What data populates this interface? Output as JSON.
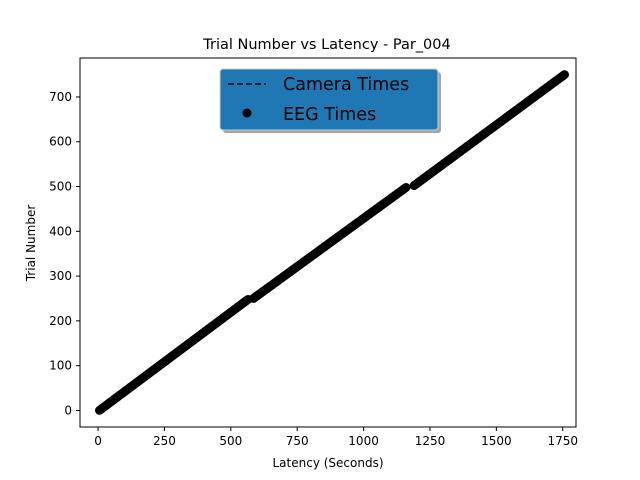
{
  "chart_data": {
    "type": "scatter",
    "title": "Trial Number vs Latency -  Par_004",
    "xlabel": "Latency (Seconds)",
    "ylabel": "Trial Number",
    "xlim": [
      -68,
      1800
    ],
    "ylim": [
      -37,
      787
    ],
    "x_ticks": [
      0,
      250,
      500,
      750,
      1000,
      1250,
      1500,
      1750
    ],
    "y_ticks": [
      0,
      100,
      200,
      300,
      400,
      500,
      600,
      700
    ],
    "x_tick_labels": [
      "0",
      "250",
      "500",
      "750",
      "1000",
      "1250",
      "1500",
      "1750"
    ],
    "y_tick_labels": [
      "0",
      "100",
      "200",
      "300",
      "400",
      "500",
      "600",
      "700"
    ],
    "grid": false,
    "legend_position": "top-center",
    "legend": {
      "background": "#1f77b4",
      "entries": [
        {
          "label": "Camera Times",
          "marker": "dashed-line",
          "color": "#000000"
        },
        {
          "label": "EEG Times",
          "marker": "circle",
          "color": "#000000"
        }
      ]
    },
    "series": [
      {
        "name": "Camera Times",
        "style": "dashed-line",
        "color": "#000000",
        "x": [
          5,
          1757
        ],
        "y": [
          0,
          750
        ]
      },
      {
        "name": "EEG Times",
        "style": "points",
        "color": "#000000",
        "segments": [
          {
            "x_start": 5,
            "x_end": 565,
            "y_start": 0,
            "y_end": 248
          },
          {
            "x_start": 585,
            "x_end": 1160,
            "y_start": 250,
            "y_end": 498
          },
          {
            "x_start": 1190,
            "x_end": 1757,
            "y_start": 502,
            "y_end": 750
          }
        ]
      }
    ]
  }
}
